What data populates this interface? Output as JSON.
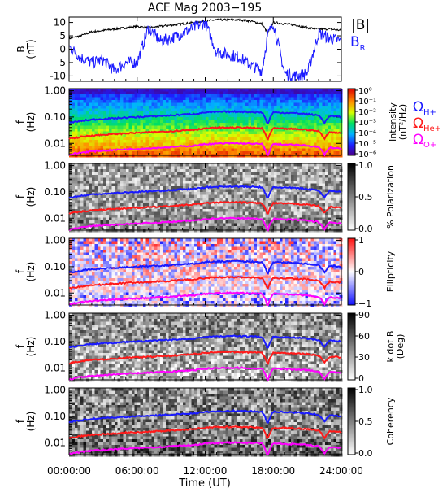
{
  "figure_title": "ACE Mag 2003−195",
  "colors": {
    "blue": "#1a1aff",
    "red": "#ff1a1a",
    "magenta": "#ff00ff",
    "black": "#000000"
  },
  "chart_data": [
    {
      "type": "line",
      "panel": "B field",
      "ylabel": "B",
      "yunit": "(nT)",
      "ylim": [
        -12,
        12
      ],
      "yticks": [
        "10",
        "5",
        "0",
        "-5",
        "-10"
      ],
      "ytick_values": [
        10,
        5,
        0,
        -5,
        -10
      ],
      "series": [
        {
          "name": "|B|",
          "color": "black",
          "x_hours": [
            0,
            1,
            2,
            3,
            4,
            5,
            6,
            7,
            8,
            9,
            10,
            11,
            12,
            13,
            14,
            15,
            16,
            17,
            17.5,
            18,
            19,
            20,
            21,
            22,
            23,
            24
          ],
          "values": [
            4,
            5,
            6.5,
            7,
            7.5,
            8,
            8.5,
            8,
            8.5,
            9,
            9.5,
            10,
            10.5,
            11,
            11,
            11,
            10.5,
            9.5,
            6,
            10,
            9.5,
            9,
            8,
            7.5,
            7.5,
            7
          ]
        },
        {
          "name": "B",
          "subscript": "R",
          "color": "blue",
          "x_hours": [
            0,
            1,
            2,
            3,
            4,
            5,
            6,
            7,
            8,
            9,
            10,
            11,
            12,
            13,
            14,
            15,
            16,
            17,
            17.5,
            18,
            19,
            20,
            21,
            22,
            23,
            24
          ],
          "values": [
            1,
            -3,
            -5,
            -4,
            -8,
            -5,
            -5,
            8,
            3,
            4,
            6,
            8,
            10,
            -1,
            -2,
            -3,
            -6,
            -8,
            5,
            10,
            -9,
            -10,
            -9,
            6,
            4,
            3
          ]
        }
      ]
    },
    {
      "type": "heatmap",
      "panel": "Intensity",
      "ylabel": "f",
      "yunit": "(Hz)",
      "yscale": "log",
      "yticks": [
        "1.00",
        "0.10",
        "0.01"
      ],
      "colorbar_label": "Intensity",
      "colorbar_unit": "(nT²/Hz)",
      "colorbar_ticks": [
        "10⁰",
        "10⁻¹",
        "10⁻²",
        "10⁻³",
        "10⁻⁴",
        "10⁻⁵",
        "10⁻⁶"
      ],
      "colormap": "rainbow"
    },
    {
      "type": "heatmap",
      "panel": "% Polarization",
      "ylabel": "f",
      "yunit": "(Hz)",
      "yscale": "log",
      "yticks": [
        "1.00",
        "0.10",
        "0.01"
      ],
      "colorbar_label": "% Polarization",
      "colorbar_ticks": [
        "1.0",
        "0.5",
        "0.0"
      ],
      "colormap": "gray"
    },
    {
      "type": "heatmap",
      "panel": "Ellipticity",
      "ylabel": "f",
      "yunit": "(Hz)",
      "yscale": "log",
      "yticks": [
        "1.00",
        "0.10",
        "0.01"
      ],
      "colorbar_label": "Ellipticity",
      "colorbar_ticks": [
        "1",
        "0",
        "−1"
      ],
      "colormap": "blue-white-red"
    },
    {
      "type": "heatmap",
      "panel": "k dot B",
      "ylabel": "f",
      "yunit": "(Hz)",
      "yscale": "log",
      "yticks": [
        "1.00",
        "0.10",
        "0.01"
      ],
      "colorbar_label": "k dot B",
      "colorbar_unit": "(Deg)",
      "colorbar_ticks": [
        "90",
        "60",
        "30",
        "0"
      ],
      "colormap": "gray"
    },
    {
      "type": "heatmap",
      "panel": "Coherency",
      "ylabel": "f",
      "yunit": "(Hz)",
      "yscale": "log",
      "yticks": [
        "1.00",
        "0.10",
        "0.01"
      ],
      "colorbar_label": "Coherency",
      "colorbar_ticks": [
        "1.0",
        "0.5",
        "0.0"
      ],
      "colormap": "gray"
    }
  ],
  "gyrofrequency_lines": {
    "legend": [
      {
        "symbol": "Ω",
        "subscript": "H+",
        "color": "blue"
      },
      {
        "symbol": "Ω",
        "subscript": "He+",
        "color": "red"
      },
      {
        "symbol": "Ω",
        "subscript": "O+",
        "color": "magenta"
      }
    ],
    "x_hours": [
      0,
      1,
      2,
      3,
      4,
      5,
      6,
      7,
      8,
      9,
      10,
      11,
      12,
      13,
      14,
      15,
      16,
      17,
      17.5,
      18,
      19,
      20,
      21,
      22,
      22.5,
      23,
      24
    ],
    "H_plus_hz": [
      0.06,
      0.07,
      0.08,
      0.085,
      0.09,
      0.095,
      0.1,
      0.105,
      0.11,
      0.115,
      0.125,
      0.13,
      0.15,
      0.155,
      0.16,
      0.16,
      0.155,
      0.15,
      0.05,
      0.15,
      0.145,
      0.14,
      0.13,
      0.115,
      0.06,
      0.11,
      0.1
    ],
    "He_plus_hz": [
      0.015,
      0.0175,
      0.02,
      0.021,
      0.0225,
      0.024,
      0.025,
      0.026,
      0.0275,
      0.029,
      0.031,
      0.033,
      0.037,
      0.039,
      0.04,
      0.04,
      0.039,
      0.037,
      0.013,
      0.037,
      0.036,
      0.035,
      0.033,
      0.029,
      0.015,
      0.027,
      0.025
    ],
    "O_plus_hz": [
      0.0037,
      0.0044,
      0.005,
      0.0053,
      0.0056,
      0.006,
      0.0062,
      0.0065,
      0.0069,
      0.0072,
      0.0078,
      0.0081,
      0.0094,
      0.0097,
      0.01,
      0.01,
      0.0097,
      0.0094,
      0.0031,
      0.0094,
      0.009,
      0.0087,
      0.0081,
      0.0072,
      0.0037,
      0.0069,
      0.0062
    ]
  },
  "x_axis": {
    "label": "Time (UT)",
    "xlim_hours": [
      0,
      24
    ],
    "tick_hours": [
      0,
      6,
      12,
      18,
      24
    ],
    "tick_labels": [
      "00:00:00",
      "06:00:00",
      "12:00:00",
      "18:00:00",
      "24:00:00"
    ]
  }
}
